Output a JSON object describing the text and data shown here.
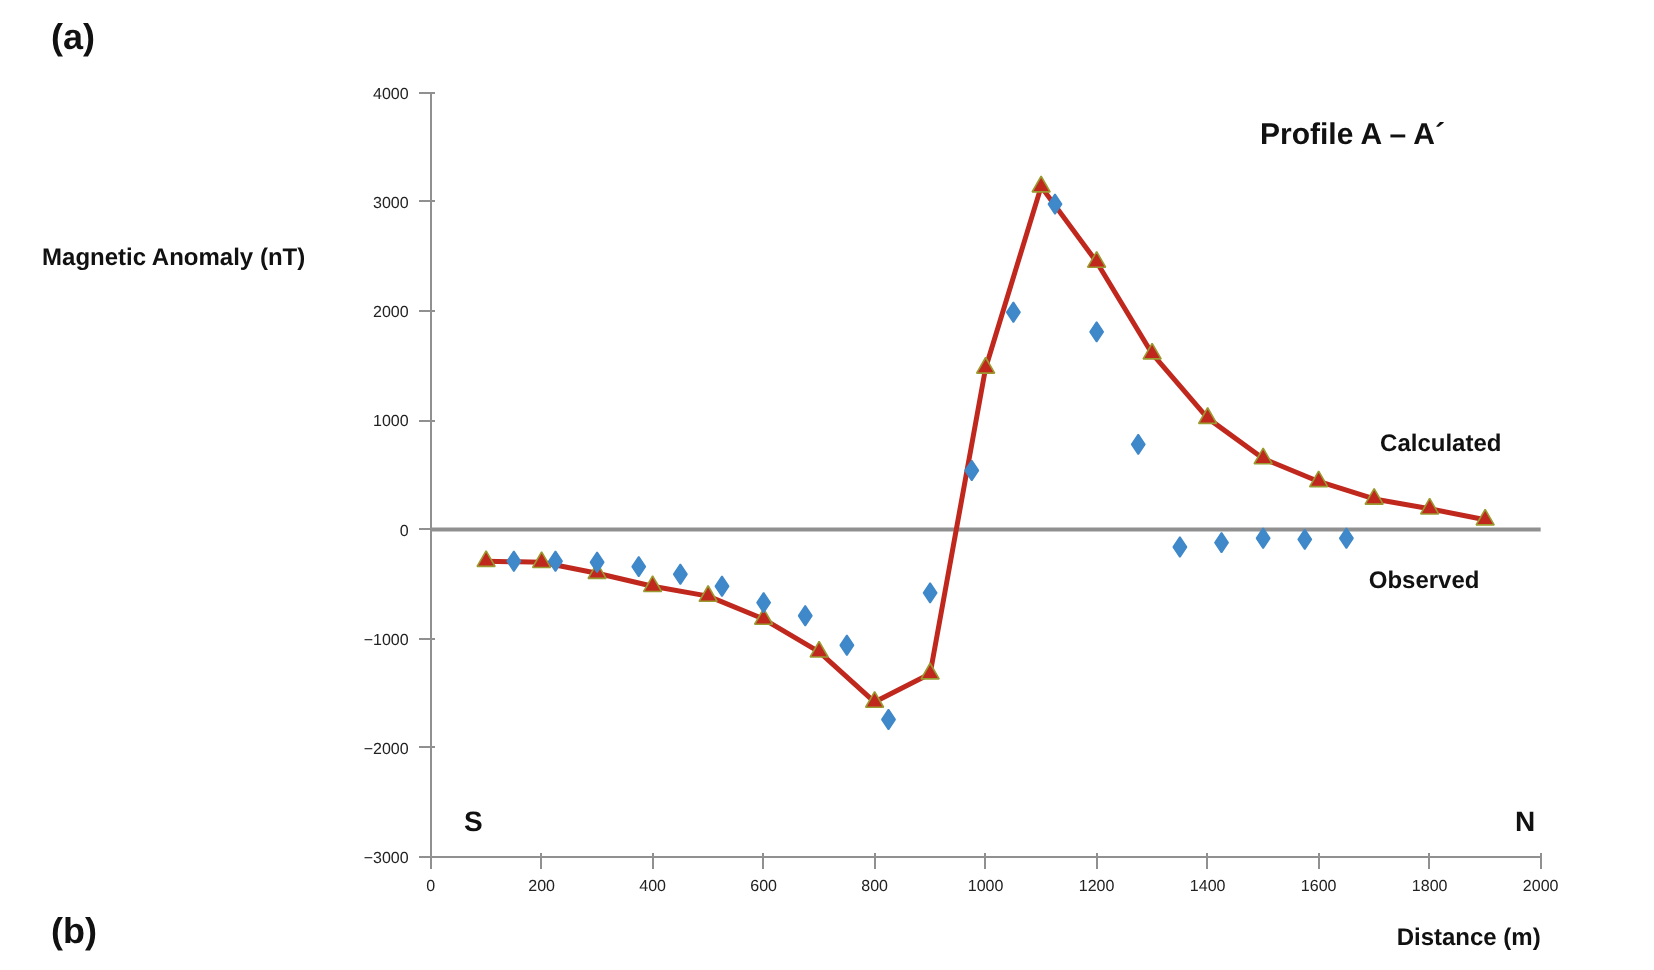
{
  "chart_data": {
    "type": "scatter",
    "title": "(a)",
    "subtitle": "Profile A – A´",
    "xlabel": "Distance (m)",
    "ylabel": "Magnetic Anomaly (nT)",
    "annotations": [
      "S",
      "N",
      "(b)"
    ],
    "xlim": [
      0,
      2000
    ],
    "xticks": [
      0,
      200,
      400,
      600,
      800,
      1000,
      1200,
      1400,
      1600,
      1800,
      2000
    ],
    "ylim": [
      -3000,
      4000
    ],
    "yticks": [
      -3000,
      -2000,
      -1000,
      0,
      1000,
      2000,
      3000,
      4000
    ],
    "grid": false,
    "ref_lines": [
      {
        "axis": "y",
        "value": 0,
        "color": "#909090"
      }
    ],
    "series": [
      {
        "name": "Calculated",
        "type": "line",
        "marker": "triangle",
        "color": "#c0281e",
        "x": [
          100,
          200,
          300,
          400,
          500,
          600,
          700,
          800,
          900,
          1000,
          1100,
          1200,
          1300,
          1400,
          1500,
          1600,
          1700,
          1800,
          1900
        ],
        "values": [
          -290,
          -300,
          -400,
          -520,
          -610,
          -820,
          -1120,
          -1580,
          -1320,
          1480,
          3140,
          2450,
          1610,
          1020,
          650,
          440,
          280,
          190,
          90
        ]
      },
      {
        "name": "Observed",
        "marker": "diamond",
        "color": "#3f88c9",
        "x": [
          150,
          225,
          300,
          375,
          450,
          525,
          600,
          675,
          750,
          825,
          900,
          975,
          1050,
          1125,
          1200,
          1275,
          1350,
          1425,
          1500,
          1575,
          1650
        ],
        "values": [
          -290,
          -290,
          -300,
          -340,
          -410,
          -520,
          -670,
          -790,
          -1060,
          -1740,
          -580,
          540,
          1990,
          2980,
          1810,
          780,
          -160,
          -120,
          -80,
          -90,
          -80
        ]
      }
    ]
  }
}
